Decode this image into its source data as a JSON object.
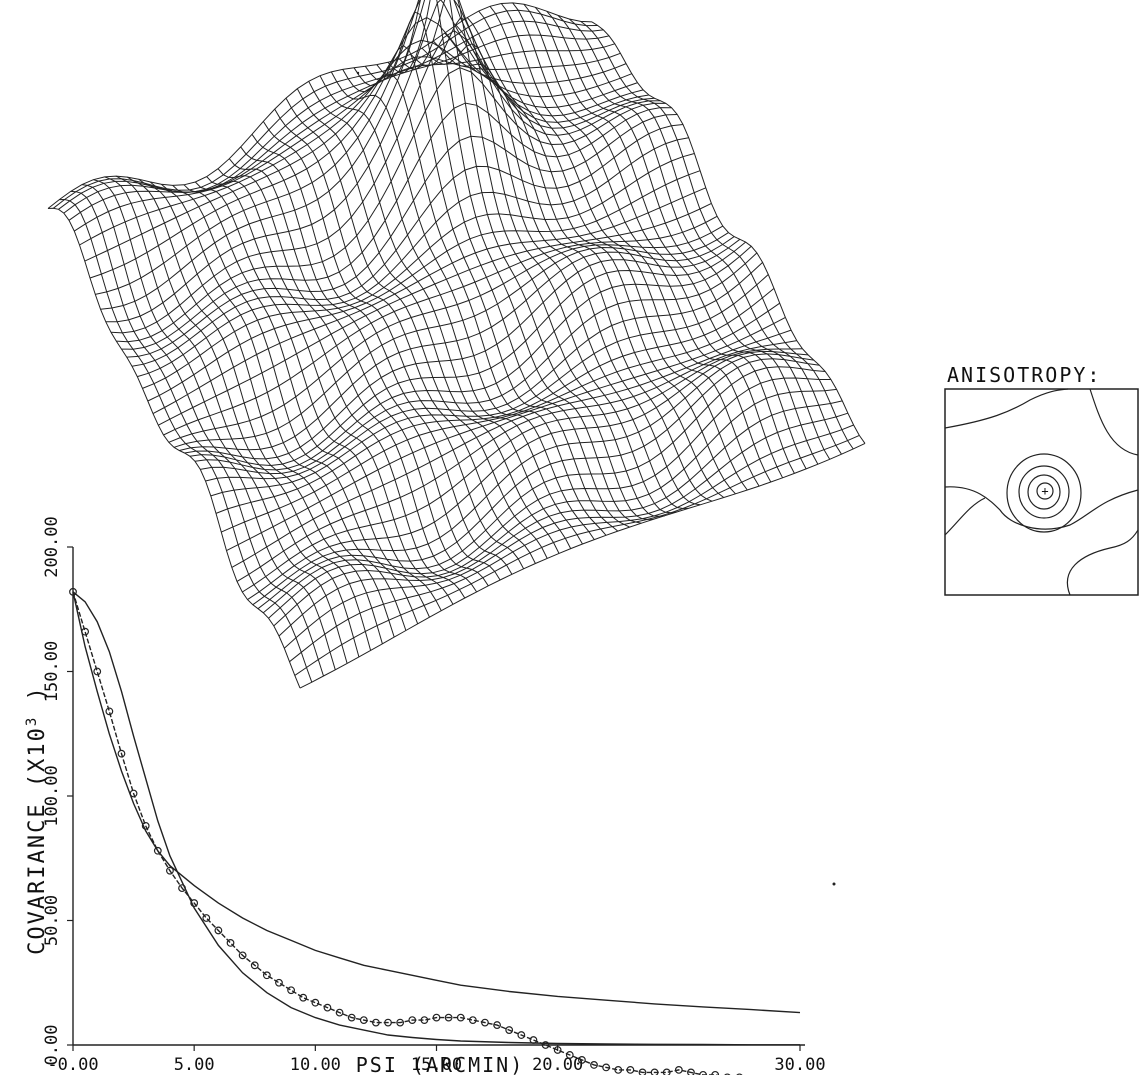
{
  "chart_data": [
    {
      "type": "surface",
      "description_visible": "3-D wireframe surface with a sharp central peak"
    },
    {
      "type": "line",
      "xlabel": "PSI  (ARCMIN)",
      "ylabel": "COVARIANCE (X10",
      "ylabel_exp": "3",
      "ylabel_close": " )",
      "xlim": [
        0,
        30
      ],
      "ylim": [
        0,
        200
      ],
      "x_ticks": [
        "-0.00",
        "5.00",
        "10.00",
        "15.00",
        "20.00",
        "30.00"
      ],
      "x_tick_values": [
        0,
        5,
        10,
        15,
        20,
        30
      ],
      "y_ticks": [
        "0.00",
        "50.00",
        "100.00",
        "150.00",
        "200.00"
      ],
      "y_tick_values": [
        0,
        50,
        100,
        150,
        200
      ],
      "series": [
        {
          "style": "circles",
          "x": [
            0,
            0.5,
            1,
            1.5,
            2,
            2.5,
            3,
            3.5,
            4,
            4.5,
            5,
            5.5,
            6,
            6.5,
            7,
            7.5,
            8,
            8.5,
            9,
            9.5,
            10,
            10.5,
            11,
            11.5,
            12,
            12.5,
            13,
            13.5,
            14,
            14.5,
            15,
            15.5,
            16,
            16.5,
            17,
            17.5,
            18,
            18.5,
            19,
            19.5,
            20,
            20.5,
            21,
            21.5,
            22,
            22.5,
            23,
            23.5,
            24,
            24.5,
            25,
            25.5,
            26,
            26.5,
            27,
            27.5,
            28,
            28.5,
            29,
            29.5,
            30
          ],
          "y": [
            182,
            166,
            150,
            134,
            117,
            101,
            88,
            78,
            70,
            63,
            57,
            51,
            46,
            41,
            36,
            32,
            28,
            25,
            22,
            19,
            17,
            15,
            13,
            11,
            10,
            9,
            9,
            9,
            10,
            10,
            11,
            11,
            11,
            10,
            9,
            8,
            6,
            4,
            2,
            0,
            -2,
            -4,
            -6,
            -8,
            -9,
            -10,
            -10,
            -11,
            -11,
            -11,
            -10,
            -11,
            -12,
            -12,
            -13,
            -13,
            -14,
            -14,
            -15,
            -15,
            -15
          ]
        },
        {
          "style": "line",
          "x": [
            0,
            0.5,
            1,
            1.5,
            2,
            2.5,
            3,
            3.5,
            4,
            5,
            6,
            7,
            8,
            9,
            10,
            11,
            12,
            13,
            14,
            15,
            16,
            18,
            20,
            22,
            24,
            26,
            28,
            30
          ],
          "y": [
            182,
            178,
            170,
            158,
            142,
            124,
            107,
            90,
            76,
            55,
            40,
            29,
            21,
            15,
            11,
            8,
            6,
            4,
            3,
            2.2,
            1.6,
            1,
            0.6,
            0.4,
            0.3,
            0.2,
            0.1,
            0.1
          ]
        },
        {
          "style": "line",
          "x": [
            0,
            0.5,
            1,
            1.5,
            2,
            2.5,
            3,
            3.5,
            4,
            5,
            6,
            7,
            8,
            9,
            10,
            11,
            12,
            13,
            14,
            15,
            16,
            18,
            20,
            22,
            24,
            26,
            28,
            30
          ],
          "y": [
            182,
            160,
            142,
            125,
            110,
            97,
            86,
            78,
            72,
            64,
            57,
            51,
            46,
            42,
            38,
            35,
            32,
            30,
            28,
            26,
            24,
            21.5,
            19.5,
            18,
            16.5,
            15.3,
            14.2,
            13
          ]
        }
      ]
    },
    {
      "type": "contour",
      "title": "ANISOTROPY:"
    }
  ]
}
